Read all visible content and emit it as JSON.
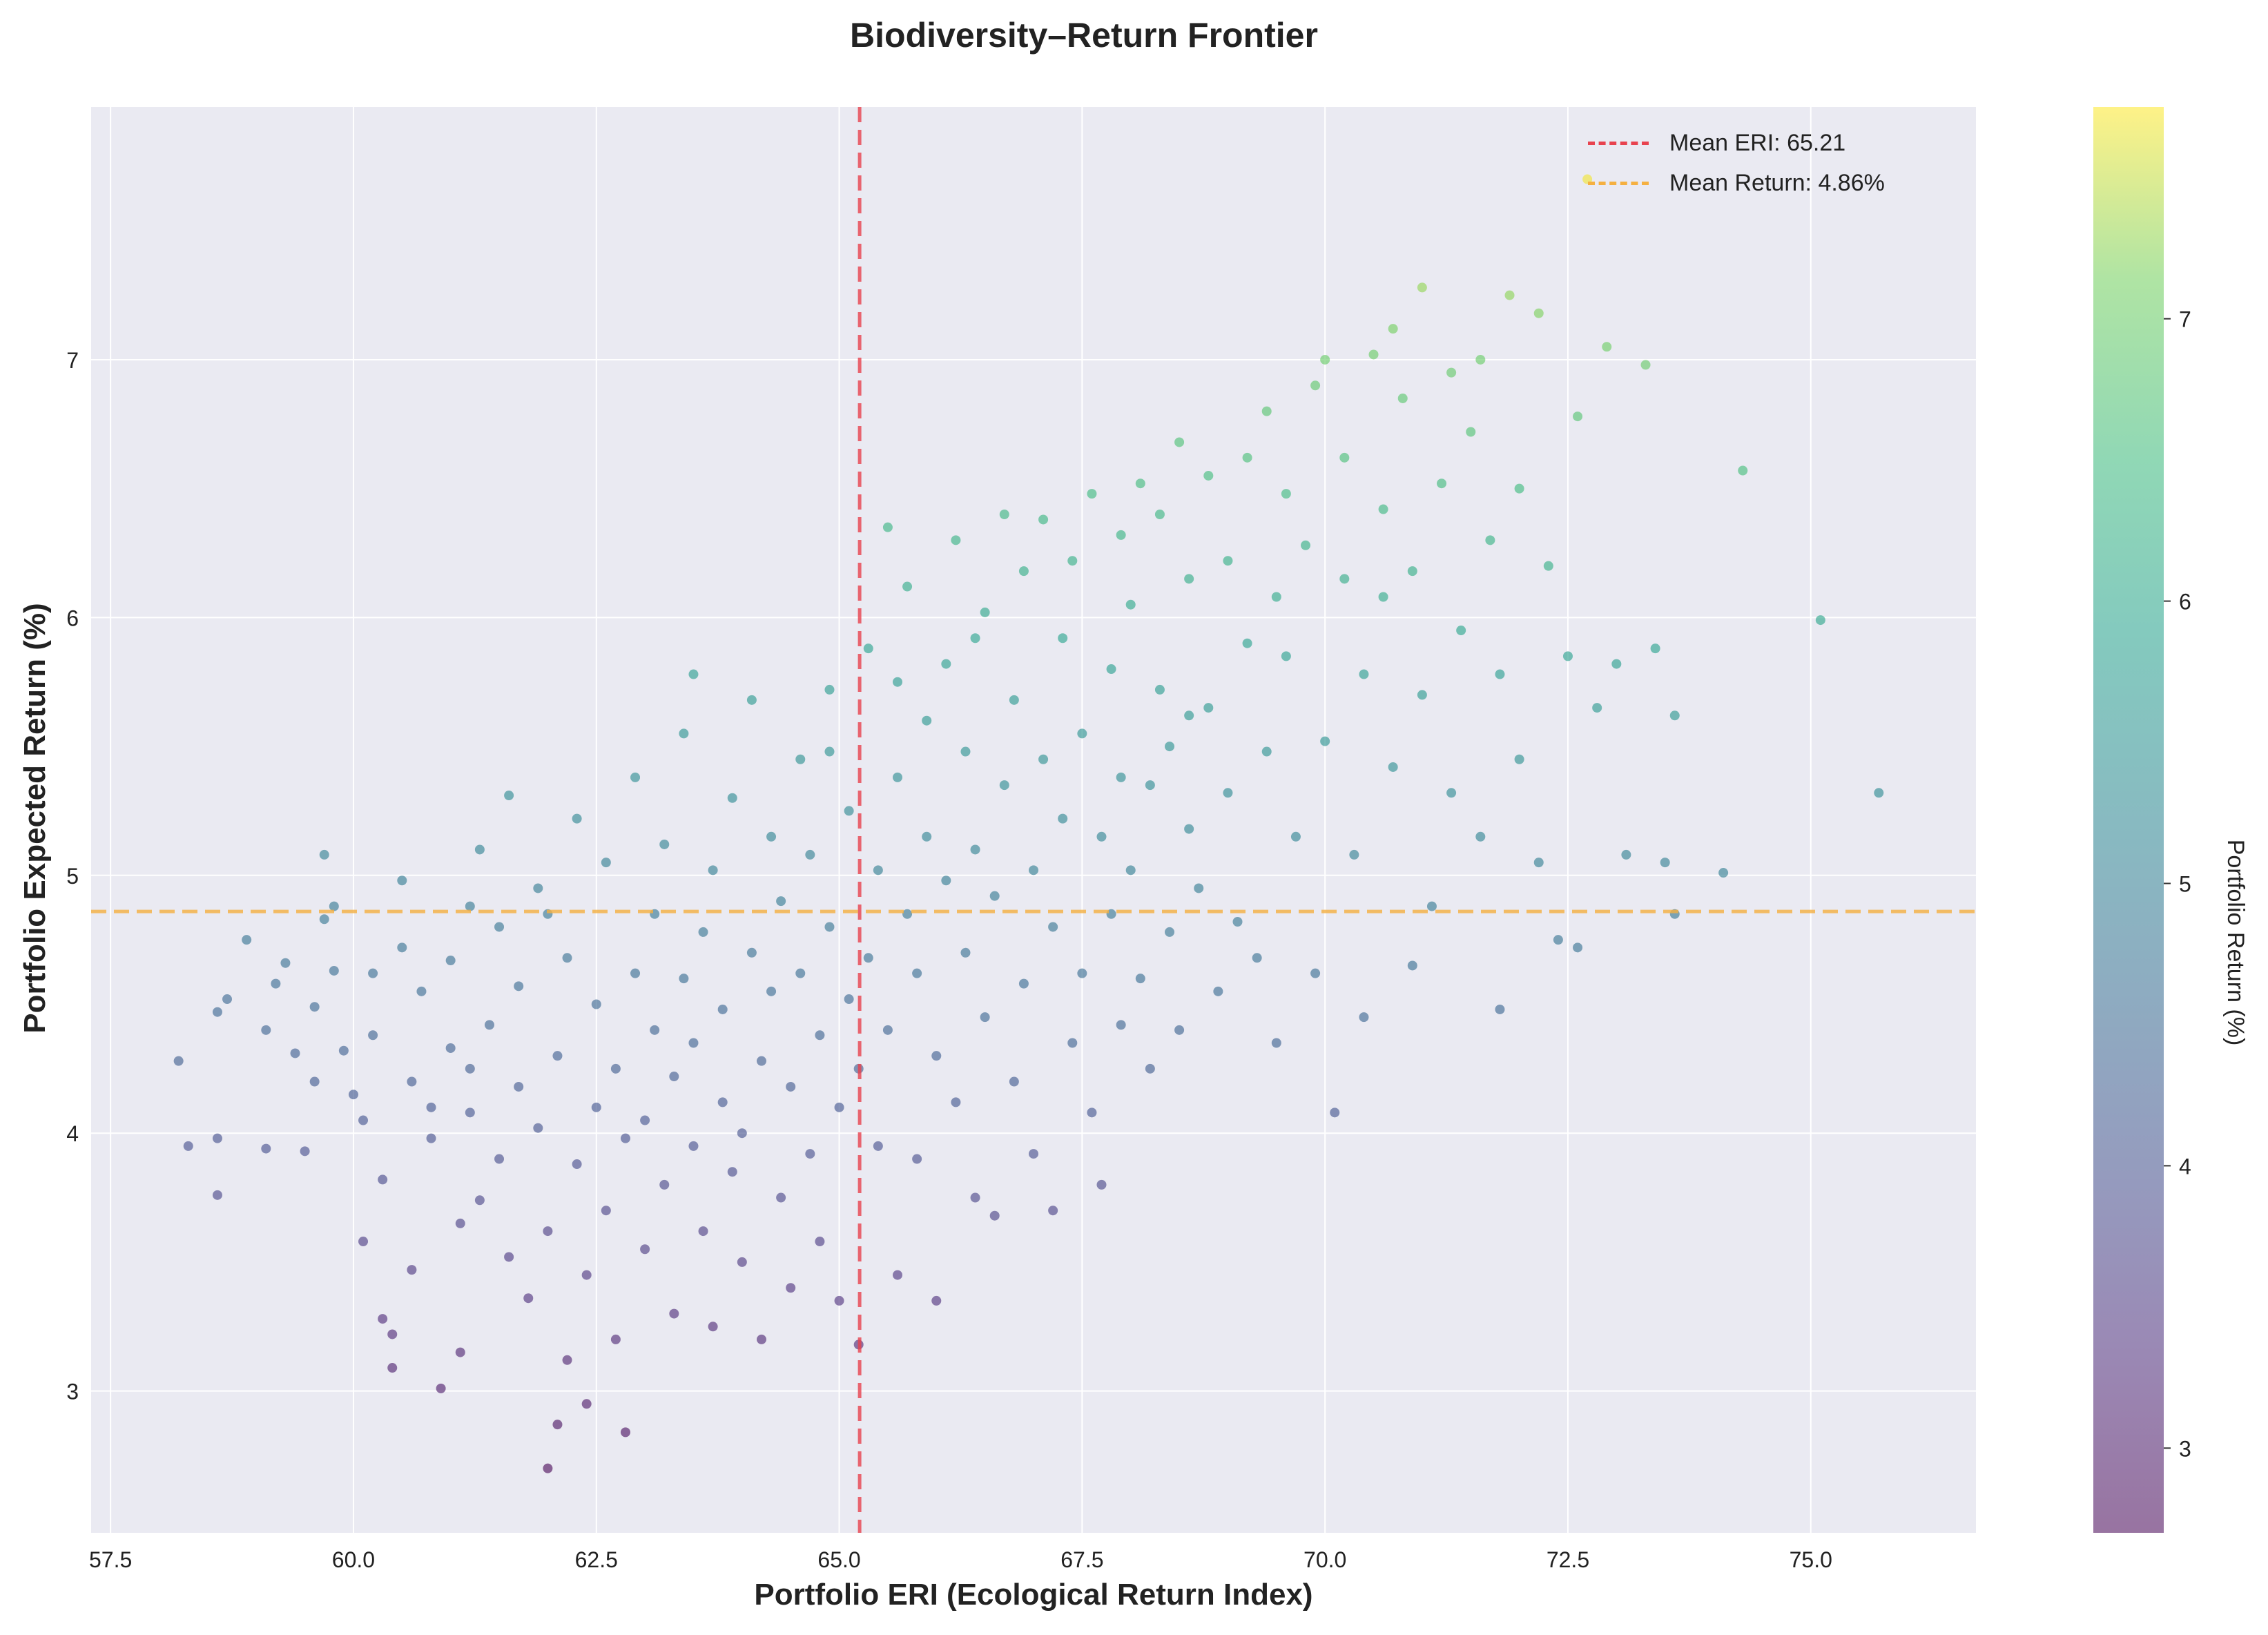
{
  "chart_data": {
    "type": "scatter",
    "title": "Biodiversity–Return Frontier",
    "xlabel": "Portfolio ERI (Ecological Return Index)",
    "ylabel": "Portfolio Expected Return (%)",
    "xlim": [
      57.3,
      76.7
    ],
    "ylim": [
      2.45,
      7.98
    ],
    "xticks": [
      "57.5",
      "60.0",
      "62.5",
      "65.0",
      "67.5",
      "70.0",
      "72.5",
      "75.0"
    ],
    "yticks": [
      "3",
      "4",
      "5",
      "6",
      "7"
    ],
    "grid": true,
    "colorbar": {
      "label": "Portfolio Return (%)",
      "range": [
        2.7,
        7.75
      ],
      "ticks": [
        "3",
        "4",
        "5",
        "6",
        "7"
      ],
      "colormap": "viridis"
    },
    "legend": {
      "placement": "top-right",
      "entries": [
        "Mean ERI: 65.21",
        "Mean Return: 4.86%"
      ]
    },
    "reference_lines": [
      {
        "orientation": "vertical",
        "value": 65.21,
        "color": "#e8434f",
        "label": "Mean ERI: 65.21"
      },
      {
        "orientation": "horizontal",
        "value": 4.86,
        "color": "#f5b041",
        "label": "Mean Return: 4.86%"
      }
    ],
    "series": [
      {
        "points": [
          [
            58.2,
            4.28
          ],
          [
            58.3,
            3.95
          ],
          [
            58.6,
            4.47
          ],
          [
            58.6,
            3.98
          ],
          [
            58.6,
            3.76
          ],
          [
            58.7,
            4.52
          ],
          [
            58.9,
            4.75
          ],
          [
            59.1,
            3.94
          ],
          [
            59.1,
            4.4
          ],
          [
            59.2,
            4.58
          ],
          [
            59.3,
            4.66
          ],
          [
            59.4,
            4.31
          ],
          [
            59.5,
            3.93
          ],
          [
            59.6,
            4.2
          ],
          [
            59.6,
            4.49
          ],
          [
            59.7,
            4.83
          ],
          [
            59.7,
            5.08
          ],
          [
            59.8,
            4.88
          ],
          [
            59.8,
            4.63
          ],
          [
            59.9,
            4.32
          ],
          [
            60.0,
            4.15
          ],
          [
            60.1,
            3.58
          ],
          [
            60.1,
            4.05
          ],
          [
            60.2,
            4.38
          ],
          [
            60.2,
            4.62
          ],
          [
            60.3,
            3.82
          ],
          [
            60.3,
            3.28
          ],
          [
            60.4,
            3.09
          ],
          [
            60.4,
            3.22
          ],
          [
            60.5,
            4.72
          ],
          [
            60.5,
            4.98
          ],
          [
            60.6,
            3.47
          ],
          [
            60.6,
            4.2
          ],
          [
            60.7,
            4.55
          ],
          [
            60.8,
            4.1
          ],
          [
            60.8,
            3.98
          ],
          [
            60.9,
            3.01
          ],
          [
            61.0,
            4.33
          ],
          [
            61.0,
            4.67
          ],
          [
            61.1,
            3.65
          ],
          [
            61.1,
            3.15
          ],
          [
            61.2,
            4.08
          ],
          [
            61.2,
            4.88
          ],
          [
            61.3,
            3.74
          ],
          [
            61.3,
            5.1
          ],
          [
            61.4,
            4.42
          ],
          [
            61.5,
            3.9
          ],
          [
            61.5,
            4.8
          ],
          [
            61.6,
            3.52
          ],
          [
            61.6,
            5.31
          ],
          [
            61.7,
            4.18
          ],
          [
            61.7,
            4.57
          ],
          [
            61.8,
            3.36
          ],
          [
            61.9,
            4.02
          ],
          [
            61.9,
            4.95
          ],
          [
            62.0,
            2.7
          ],
          [
            62.0,
            3.62
          ],
          [
            62.1,
            2.87
          ],
          [
            62.1,
            4.3
          ],
          [
            62.2,
            3.12
          ],
          [
            62.2,
            4.68
          ],
          [
            62.3,
            3.88
          ],
          [
            62.3,
            5.22
          ],
          [
            62.4,
            2.95
          ],
          [
            62.4,
            3.45
          ],
          [
            62.5,
            4.1
          ],
          [
            62.5,
            4.5
          ],
          [
            62.6,
            3.7
          ],
          [
            62.6,
            5.05
          ],
          [
            62.7,
            3.2
          ],
          [
            62.7,
            4.25
          ],
          [
            62.8,
            2.84
          ],
          [
            62.8,
            3.98
          ],
          [
            62.9,
            4.62
          ],
          [
            62.9,
            5.38
          ],
          [
            63.0,
            3.55
          ],
          [
            63.0,
            4.05
          ],
          [
            63.1,
            4.4
          ],
          [
            63.1,
            4.85
          ],
          [
            63.2,
            3.8
          ],
          [
            63.2,
            5.12
          ],
          [
            63.3,
            3.3
          ],
          [
            63.3,
            4.22
          ],
          [
            63.4,
            4.6
          ],
          [
            63.4,
            5.55
          ],
          [
            63.5,
            3.95
          ],
          [
            63.5,
            4.35
          ],
          [
            63.6,
            3.62
          ],
          [
            63.6,
            4.78
          ],
          [
            63.7,
            3.25
          ],
          [
            63.7,
            5.02
          ],
          [
            63.8,
            4.12
          ],
          [
            63.8,
            4.48
          ],
          [
            63.9,
            3.85
          ],
          [
            63.9,
            5.3
          ],
          [
            64.0,
            3.5
          ],
          [
            64.0,
            4.0
          ],
          [
            64.1,
            4.7
          ],
          [
            64.1,
            5.68
          ],
          [
            64.2,
            3.2
          ],
          [
            64.2,
            4.28
          ],
          [
            64.3,
            4.55
          ],
          [
            64.3,
            5.15
          ],
          [
            64.4,
            3.75
          ],
          [
            64.4,
            4.9
          ],
          [
            64.5,
            3.4
          ],
          [
            64.5,
            4.18
          ],
          [
            64.6,
            4.62
          ],
          [
            64.6,
            5.45
          ],
          [
            64.7,
            3.92
          ],
          [
            64.7,
            5.08
          ],
          [
            64.8,
            3.58
          ],
          [
            64.8,
            4.38
          ],
          [
            64.9,
            4.8
          ],
          [
            64.9,
            5.72
          ],
          [
            65.0,
            3.35
          ],
          [
            65.0,
            4.1
          ],
          [
            65.1,
            4.52
          ],
          [
            65.1,
            5.25
          ],
          [
            65.2,
            3.18
          ],
          [
            65.2,
            4.25
          ],
          [
            65.3,
            4.68
          ],
          [
            65.3,
            5.88
          ],
          [
            65.4,
            3.95
          ],
          [
            65.4,
            5.02
          ],
          [
            65.5,
            6.35
          ],
          [
            65.5,
            4.4
          ],
          [
            65.6,
            3.45
          ],
          [
            65.6,
            5.38
          ],
          [
            65.7,
            4.85
          ],
          [
            65.7,
            6.12
          ],
          [
            65.8,
            3.9
          ],
          [
            65.8,
            4.62
          ],
          [
            65.9,
            5.15
          ],
          [
            65.9,
            5.6
          ],
          [
            66.0,
            3.35
          ],
          [
            66.0,
            4.3
          ],
          [
            66.1,
            4.98
          ],
          [
            66.1,
            5.82
          ],
          [
            66.2,
            6.3
          ],
          [
            66.2,
            4.12
          ],
          [
            66.3,
            4.7
          ],
          [
            66.3,
            5.48
          ],
          [
            66.4,
            3.75
          ],
          [
            66.4,
            5.1
          ],
          [
            66.5,
            4.45
          ],
          [
            66.5,
            6.02
          ],
          [
            66.6,
            3.68
          ],
          [
            66.6,
            4.92
          ],
          [
            66.7,
            5.35
          ],
          [
            66.7,
            6.4
          ],
          [
            66.8,
            4.2
          ],
          [
            66.8,
            5.68
          ],
          [
            66.9,
            4.58
          ],
          [
            66.9,
            6.18
          ],
          [
            67.0,
            3.92
          ],
          [
            67.0,
            5.02
          ],
          [
            67.1,
            5.45
          ],
          [
            67.1,
            6.38
          ],
          [
            67.2,
            3.7
          ],
          [
            67.2,
            4.8
          ],
          [
            67.3,
            5.22
          ],
          [
            67.3,
            5.92
          ],
          [
            67.4,
            4.35
          ],
          [
            67.4,
            6.22
          ],
          [
            67.5,
            4.62
          ],
          [
            67.5,
            5.55
          ],
          [
            67.6,
            4.08
          ],
          [
            67.6,
            6.48
          ],
          [
            67.7,
            3.8
          ],
          [
            67.7,
            5.15
          ],
          [
            67.8,
            4.85
          ],
          [
            67.8,
            5.8
          ],
          [
            67.9,
            4.42
          ],
          [
            67.9,
            6.32
          ],
          [
            68.0,
            5.02
          ],
          [
            68.0,
            6.05
          ],
          [
            68.1,
            4.6
          ],
          [
            68.1,
            6.52
          ],
          [
            68.2,
            5.35
          ],
          [
            68.2,
            4.25
          ],
          [
            68.3,
            5.72
          ],
          [
            68.3,
            6.4
          ],
          [
            68.4,
            4.78
          ],
          [
            68.4,
            5.5
          ],
          [
            68.5,
            6.68
          ],
          [
            68.5,
            4.4
          ],
          [
            68.6,
            5.18
          ],
          [
            68.6,
            6.15
          ],
          [
            68.7,
            4.95
          ],
          [
            68.8,
            5.65
          ],
          [
            68.8,
            6.55
          ],
          [
            68.9,
            4.55
          ],
          [
            69.0,
            5.32
          ],
          [
            69.0,
            6.22
          ],
          [
            69.1,
            4.82
          ],
          [
            69.2,
            5.9
          ],
          [
            69.2,
            6.62
          ],
          [
            69.3,
            4.68
          ],
          [
            69.4,
            5.48
          ],
          [
            69.4,
            6.8
          ],
          [
            69.5,
            4.35
          ],
          [
            69.6,
            5.85
          ],
          [
            69.6,
            6.48
          ],
          [
            69.7,
            5.15
          ],
          [
            69.8,
            6.28
          ],
          [
            69.9,
            4.62
          ],
          [
            69.9,
            6.9
          ],
          [
            70.0,
            5.52
          ],
          [
            70.0,
            7.0
          ],
          [
            70.1,
            4.08
          ],
          [
            70.2,
            6.15
          ],
          [
            70.2,
            6.62
          ],
          [
            70.3,
            5.08
          ],
          [
            70.4,
            4.45
          ],
          [
            70.4,
            5.78
          ],
          [
            70.5,
            7.02
          ],
          [
            70.6,
            6.42
          ],
          [
            70.7,
            5.42
          ],
          [
            70.7,
            7.12
          ],
          [
            70.8,
            6.85
          ],
          [
            70.9,
            4.65
          ],
          [
            70.9,
            6.18
          ],
          [
            71.0,
            7.28
          ],
          [
            71.0,
            5.7
          ],
          [
            71.1,
            4.88
          ],
          [
            71.2,
            6.52
          ],
          [
            71.3,
            5.32
          ],
          [
            71.3,
            6.95
          ],
          [
            71.4,
            5.95
          ],
          [
            71.5,
            6.72
          ],
          [
            71.6,
            5.15
          ],
          [
            71.7,
            6.3
          ],
          [
            71.8,
            5.78
          ],
          [
            71.8,
            4.48
          ],
          [
            71.9,
            7.25
          ],
          [
            72.0,
            5.45
          ],
          [
            72.0,
            6.5
          ],
          [
            72.2,
            7.18
          ],
          [
            72.2,
            5.05
          ],
          [
            72.3,
            6.2
          ],
          [
            72.4,
            4.75
          ],
          [
            72.5,
            5.85
          ],
          [
            72.6,
            6.78
          ],
          [
            72.6,
            4.72
          ],
          [
            72.7,
            7.7
          ],
          [
            72.8,
            5.65
          ],
          [
            72.9,
            7.05
          ],
          [
            73.0,
            5.82
          ],
          [
            73.1,
            5.08
          ],
          [
            73.3,
            6.98
          ],
          [
            73.4,
            5.88
          ],
          [
            73.5,
            5.05
          ],
          [
            73.6,
            5.62
          ],
          [
            73.6,
            4.85
          ],
          [
            74.1,
            5.01
          ],
          [
            74.3,
            6.57
          ],
          [
            75.1,
            5.99
          ],
          [
            75.7,
            5.32
          ],
          [
            71.6,
            7.0
          ],
          [
            63.5,
            5.78
          ],
          [
            64.9,
            5.48
          ],
          [
            65.6,
            5.75
          ],
          [
            66.4,
            5.92
          ],
          [
            67.9,
            5.38
          ],
          [
            68.6,
            5.62
          ],
          [
            69.5,
            6.08
          ],
          [
            70.6,
            6.08
          ],
          [
            62.0,
            4.85
          ],
          [
            61.2,
            4.25
          ]
        ]
      }
    ]
  }
}
